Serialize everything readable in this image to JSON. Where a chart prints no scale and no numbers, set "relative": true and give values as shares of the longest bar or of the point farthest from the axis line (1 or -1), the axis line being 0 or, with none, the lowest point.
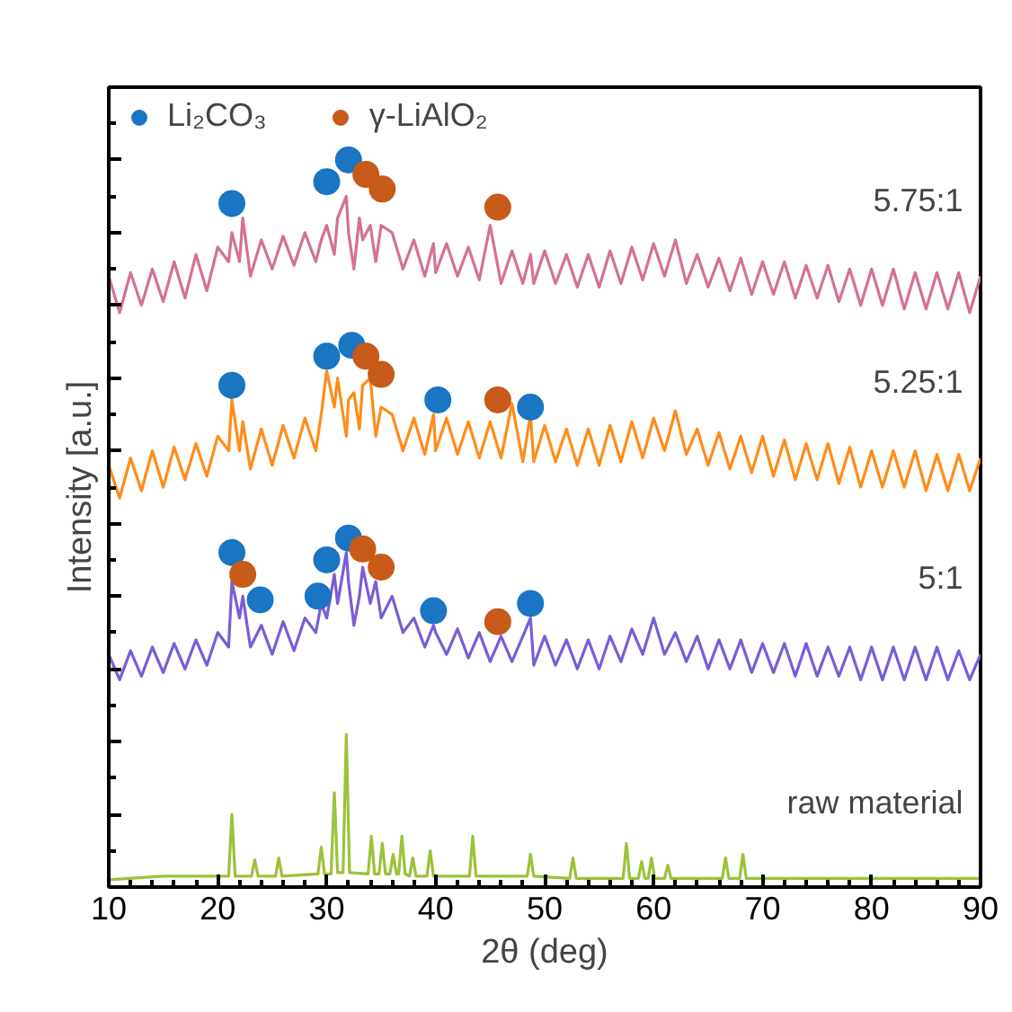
{
  "chart_data": {
    "type": "line",
    "relative": true,
    "xlabel": "2θ (deg)",
    "ylabel": "Intensity [a.u.]",
    "xlim": [
      10,
      90
    ],
    "xticks": [
      10,
      20,
      30,
      40,
      50,
      60,
      70,
      80,
      90
    ],
    "tick_labels": "x",
    "grid": false,
    "legend": "top left",
    "x": [
      10,
      11,
      12,
      13,
      14,
      15,
      16,
      17,
      18,
      19,
      20,
      21,
      21.3,
      22,
      22.3,
      23,
      24,
      25,
      26,
      27,
      28,
      29,
      29.5,
      30,
      30.7,
      31,
      31.8,
      32,
      32.5,
      33,
      33.3,
      34,
      34.5,
      35,
      36,
      37,
      38,
      39,
      39.8,
      40,
      41,
      42,
      43,
      44,
      45,
      46,
      47,
      48,
      48.7,
      49,
      50,
      51,
      52,
      53,
      54,
      55,
      56,
      57,
      58,
      59,
      60,
      61,
      62,
      63,
      64,
      65,
      66,
      67,
      68,
      69,
      70,
      71,
      72,
      73,
      74,
      75,
      76,
      77,
      78,
      79,
      80,
      81,
      82,
      83,
      84,
      85,
      86,
      87,
      88,
      89,
      90
    ],
    "series": [
      {
        "name": "5.75:1",
        "color": "#d4728f",
        "values": [
          0.84,
          0.79,
          0.845,
          0.8,
          0.85,
          0.805,
          0.86,
          0.81,
          0.87,
          0.82,
          0.88,
          0.86,
          0.9,
          0.86,
          0.92,
          0.84,
          0.89,
          0.85,
          0.895,
          0.855,
          0.9,
          0.86,
          0.89,
          0.91,
          0.87,
          0.92,
          0.95,
          0.9,
          0.85,
          0.92,
          0.89,
          0.91,
          0.86,
          0.91,
          0.9,
          0.85,
          0.89,
          0.84,
          0.885,
          0.845,
          0.885,
          0.84,
          0.88,
          0.835,
          0.91,
          0.83,
          0.875,
          0.83,
          0.87,
          0.83,
          0.875,
          0.83,
          0.87,
          0.825,
          0.87,
          0.825,
          0.875,
          0.83,
          0.88,
          0.835,
          0.885,
          0.84,
          0.89,
          0.83,
          0.87,
          0.825,
          0.865,
          0.82,
          0.865,
          0.815,
          0.86,
          0.815,
          0.86,
          0.81,
          0.855,
          0.81,
          0.855,
          0.805,
          0.85,
          0.8,
          0.85,
          0.8,
          0.85,
          0.795,
          0.845,
          0.795,
          0.845,
          0.795,
          0.845,
          0.79,
          0.84
        ]
      },
      {
        "name": "5.25:1",
        "color": "#ff8c1a",
        "values": [
          0.58,
          0.535,
          0.59,
          0.545,
          0.6,
          0.55,
          0.605,
          0.56,
          0.61,
          0.565,
          0.62,
          0.6,
          0.67,
          0.6,
          0.64,
          0.575,
          0.63,
          0.58,
          0.635,
          0.59,
          0.645,
          0.6,
          0.65,
          0.71,
          0.66,
          0.7,
          0.62,
          0.67,
          0.68,
          0.63,
          0.69,
          0.7,
          0.62,
          0.66,
          0.65,
          0.6,
          0.645,
          0.595,
          0.65,
          0.6,
          0.645,
          0.595,
          0.64,
          0.59,
          0.64,
          0.59,
          0.665,
          0.585,
          0.65,
          0.585,
          0.635,
          0.585,
          0.63,
          0.58,
          0.63,
          0.58,
          0.635,
          0.585,
          0.64,
          0.59,
          0.645,
          0.6,
          0.655,
          0.595,
          0.63,
          0.58,
          0.625,
          0.575,
          0.62,
          0.57,
          0.62,
          0.565,
          0.615,
          0.56,
          0.61,
          0.56,
          0.61,
          0.555,
          0.605,
          0.55,
          0.6,
          0.55,
          0.6,
          0.55,
          0.6,
          0.545,
          0.595,
          0.545,
          0.595,
          0.545,
          0.59
        ]
      },
      {
        "name": "5:1",
        "color": "#7b5cd6",
        "values": [
          0.32,
          0.285,
          0.325,
          0.29,
          0.33,
          0.295,
          0.335,
          0.3,
          0.34,
          0.305,
          0.35,
          0.33,
          0.42,
          0.37,
          0.4,
          0.33,
          0.36,
          0.32,
          0.365,
          0.325,
          0.37,
          0.35,
          0.39,
          0.37,
          0.43,
          0.39,
          0.46,
          0.42,
          0.36,
          0.4,
          0.44,
          0.39,
          0.42,
          0.37,
          0.4,
          0.35,
          0.37,
          0.33,
          0.36,
          0.35,
          0.32,
          0.355,
          0.315,
          0.35,
          0.31,
          0.345,
          0.31,
          0.345,
          0.37,
          0.305,
          0.345,
          0.305,
          0.34,
          0.3,
          0.34,
          0.3,
          0.345,
          0.31,
          0.355,
          0.32,
          0.37,
          0.32,
          0.35,
          0.31,
          0.345,
          0.3,
          0.34,
          0.3,
          0.34,
          0.295,
          0.335,
          0.295,
          0.335,
          0.29,
          0.335,
          0.29,
          0.33,
          0.29,
          0.33,
          0.285,
          0.33,
          0.285,
          0.33,
          0.285,
          0.33,
          0.285,
          0.33,
          0.285,
          0.325,
          0.285,
          0.32
        ]
      },
      {
        "name": "raw material",
        "color": "#9bc23a",
        "x": [
          10,
          15,
          20,
          21,
          21.3,
          21.6,
          23.1,
          23.4,
          23.7,
          25.3,
          25.6,
          25.9,
          29.2,
          29.5,
          29.8,
          30.4,
          30.7,
          31.0,
          31.5,
          31.8,
          32.1,
          33.8,
          34.1,
          34.4,
          34.8,
          35.1,
          35.4,
          35.8,
          36.1,
          36.4,
          36.6,
          36.9,
          37.2,
          37.6,
          37.9,
          38.2,
          39.2,
          39.5,
          39.8,
          43.1,
          43.4,
          43.7,
          48.4,
          48.7,
          49.0,
          52.3,
          52.6,
          52.9,
          57.2,
          57.5,
          57.8,
          58.6,
          58.9,
          59.2,
          59.5,
          59.8,
          60.1,
          61.0,
          61.3,
          61.6,
          66.3,
          66.6,
          66.9,
          67.9,
          68.2,
          68.5,
          75,
          80,
          85,
          90
        ],
        "values": [
          0.01,
          0.015,
          0.015,
          0.015,
          0.1,
          0.015,
          0.015,
          0.0375,
          0.015,
          0.015,
          0.04,
          0.015,
          0.018,
          0.055,
          0.018,
          0.018,
          0.13,
          0.02,
          0.02,
          0.21,
          0.02,
          0.018,
          0.07,
          0.018,
          0.018,
          0.06,
          0.018,
          0.018,
          0.045,
          0.018,
          0.018,
          0.07,
          0.018,
          0.015,
          0.04,
          0.015,
          0.015,
          0.05,
          0.015,
          0.015,
          0.07,
          0.015,
          0.015,
          0.045,
          0.015,
          0.012,
          0.04,
          0.012,
          0.012,
          0.06,
          0.012,
          0.012,
          0.035,
          0.012,
          0.012,
          0.04,
          0.012,
          0.012,
          0.03,
          0.012,
          0.012,
          0.04,
          0.012,
          0.012,
          0.045,
          0.012,
          0.012,
          0.012,
          0.012,
          0.012
        ]
      },
      {
        "name": "Li₂CO₃",
        "type": "scatter",
        "marker": "circle",
        "color": "#1a75c2",
        "x": [
          21.3,
          30.0,
          32.0,
          21.3,
          30.0,
          32.3,
          40.2,
          48.7,
          21.3,
          23.9,
          29.2,
          30.0,
          32.0,
          39.8,
          48.7
        ],
        "values": [
          0.94,
          0.97,
          1.0,
          0.69,
          0.73,
          0.745,
          0.67,
          0.66,
          0.46,
          0.395,
          0.4,
          0.45,
          0.48,
          0.38,
          0.39
        ]
      },
      {
        "name": "γ-LiAlO₂",
        "type": "scatter",
        "marker": "circle",
        "color": "#c85a1a",
        "x": [
          33.6,
          35.1,
          45.7,
          33.6,
          35.0,
          45.7,
          22.3,
          33.3,
          35.0,
          45.7
        ],
        "values": [
          0.98,
          0.96,
          0.935,
          0.73,
          0.705,
          0.67,
          0.43,
          0.465,
          0.44,
          0.365
        ]
      }
    ]
  }
}
